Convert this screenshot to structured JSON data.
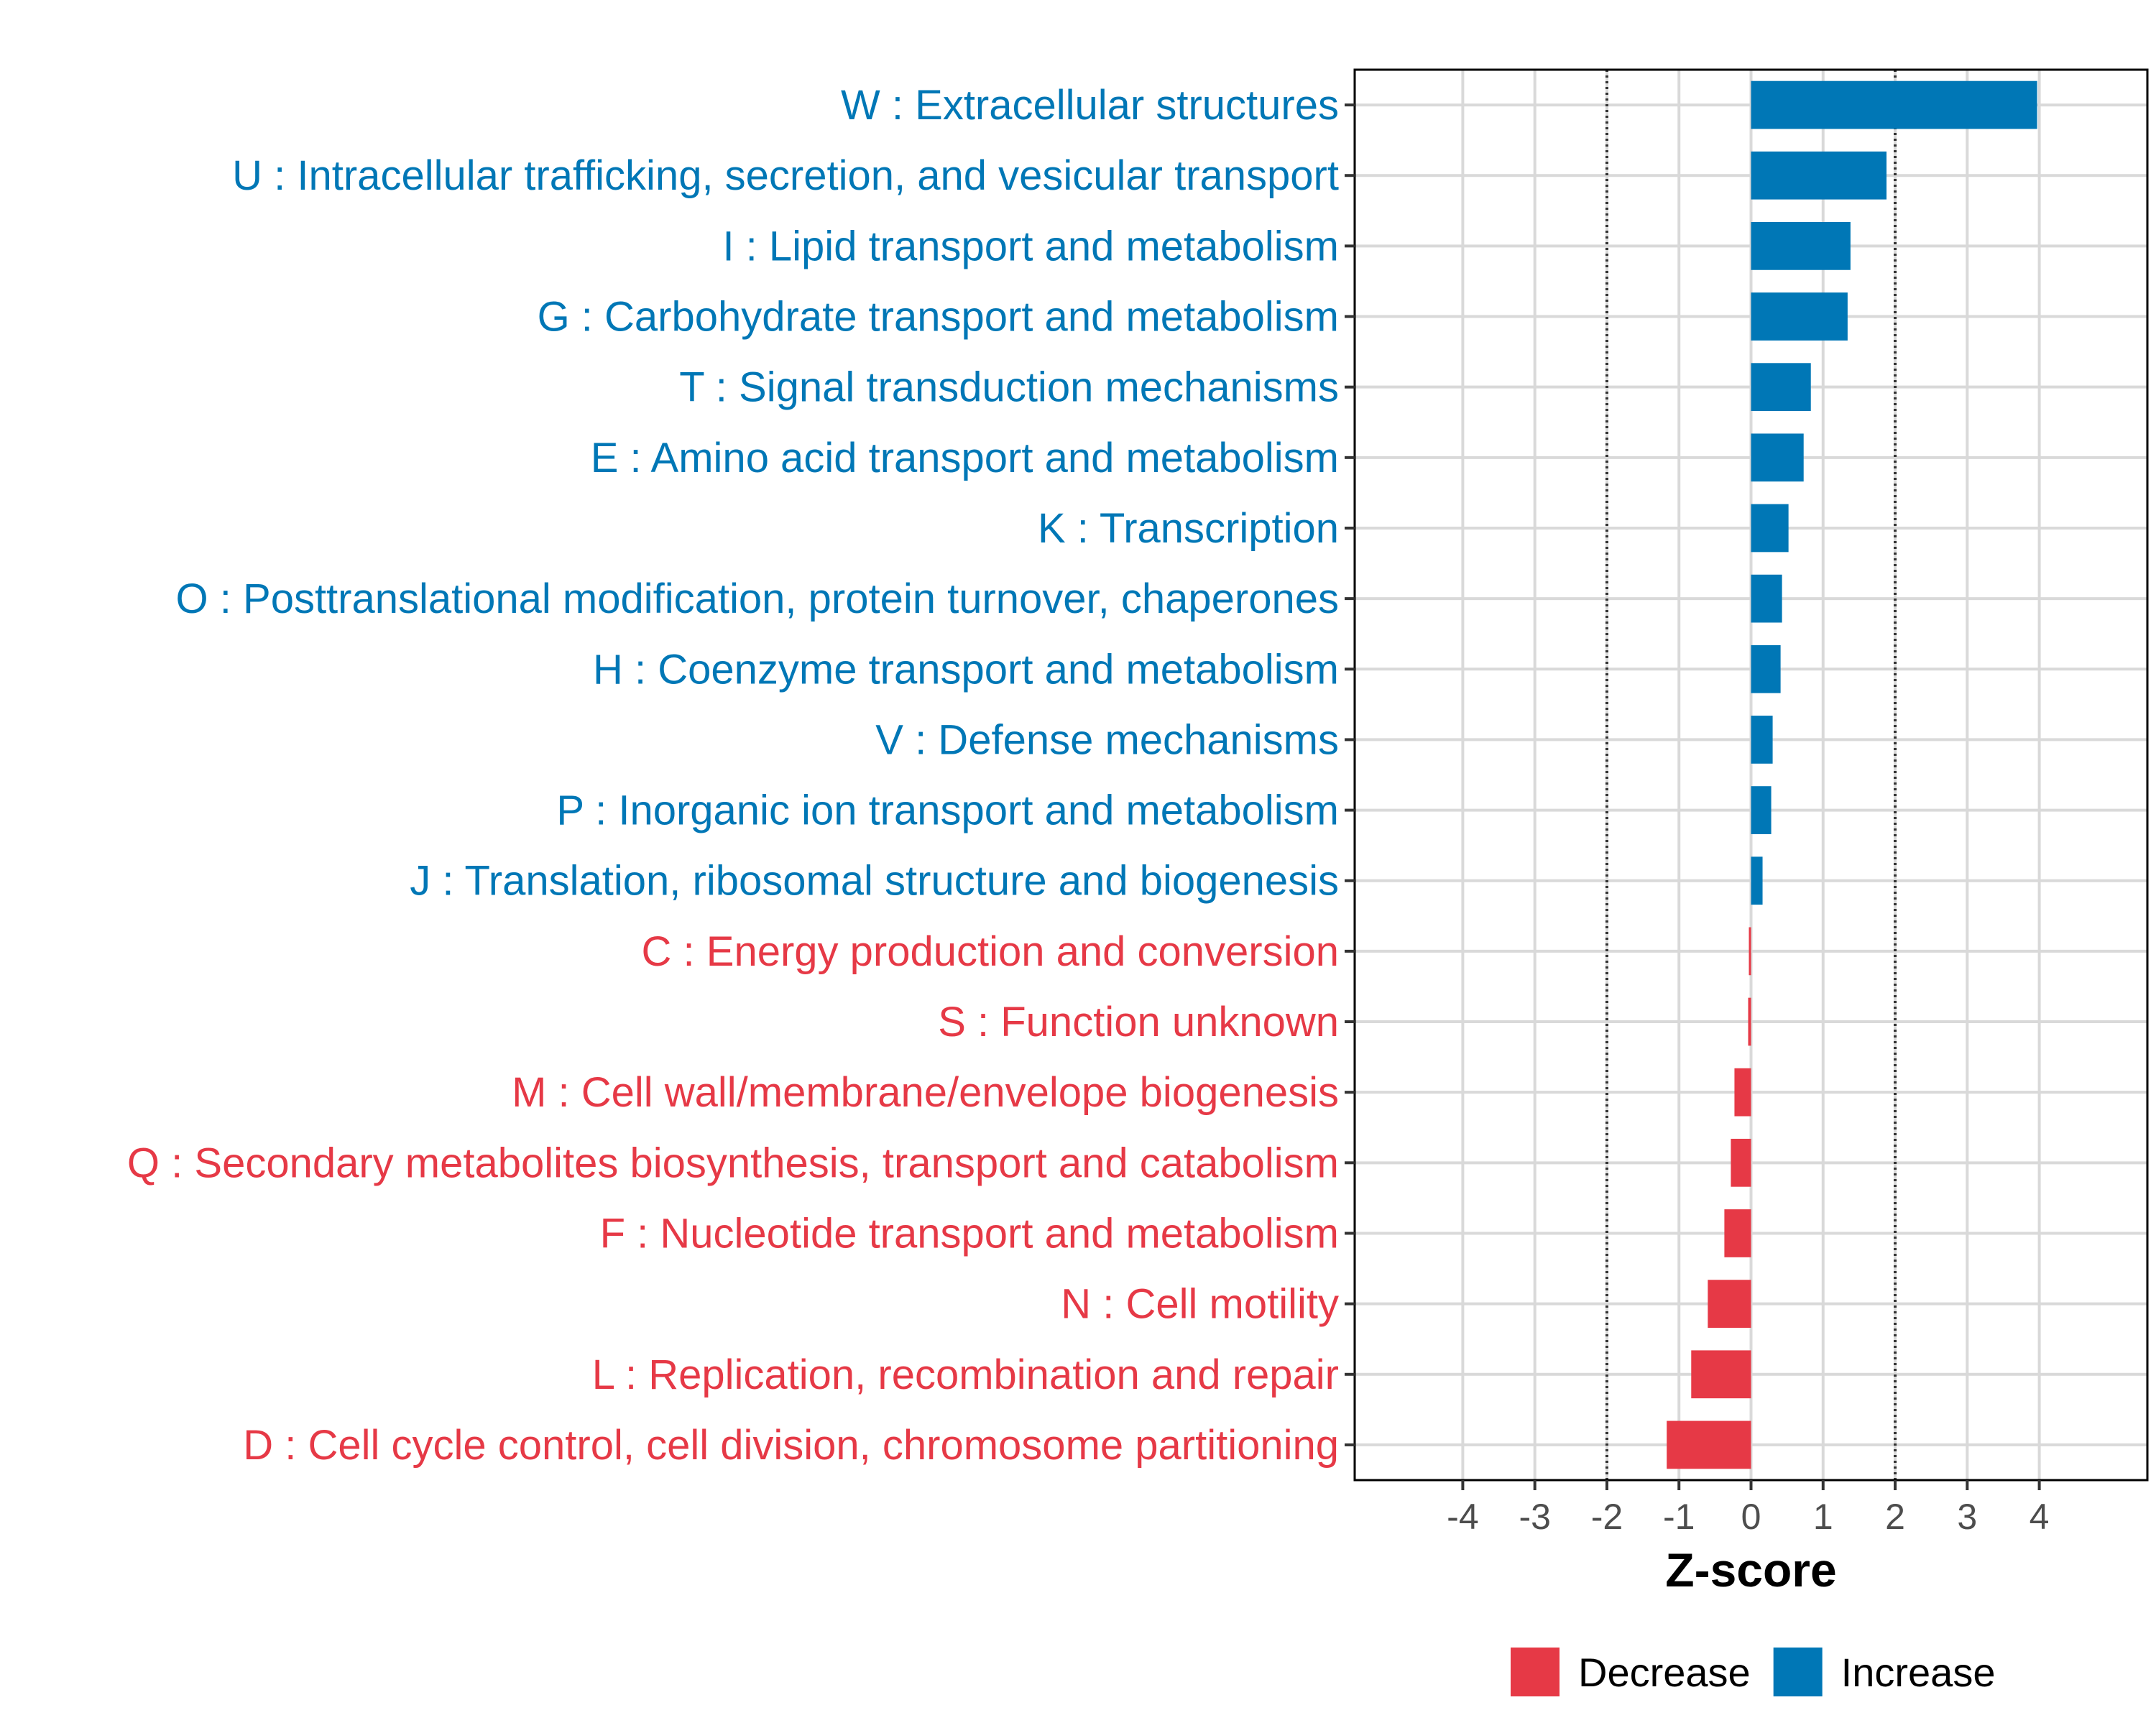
{
  "chart_data": {
    "type": "bar",
    "orientation": "horizontal",
    "xlabel": "Z-score",
    "ylabel": "",
    "xlim": [
      -5.5,
      5.5
    ],
    "x_ticks": [
      -4,
      -3,
      -2,
      -1,
      0,
      1,
      2,
      3,
      4
    ],
    "x_tick_labels": [
      "-4",
      "-3",
      "-2",
      "-1",
      "0",
      "1",
      "2",
      "3",
      "4"
    ],
    "reference_lines": [
      -2,
      2
    ],
    "grid": true,
    "categories": [
      "W : Extracellular structures",
      "U : Intracellular trafficking, secretion, and vesicular transport",
      "I : Lipid transport and metabolism",
      "G : Carbohydrate transport and metabolism",
      "T : Signal transduction mechanisms",
      "E : Amino acid transport and metabolism",
      "K : Transcription",
      "O : Posttranslational modification, protein turnover, chaperones",
      "H : Coenzyme transport and metabolism",
      "V : Defense mechanisms",
      "P : Inorganic ion transport and metabolism",
      "J : Translation, ribosomal structure and biogenesis",
      "C : Energy production and conversion",
      "S : Function unknown",
      "M : Cell wall/membrane/envelope biogenesis",
      "Q : Secondary metabolites biosynthesis, transport and catabolism",
      "F : Nucleotide transport and metabolism",
      "N : Cell motility",
      "L : Replication, recombination and repair",
      "D : Cell cycle control, cell division, chromosome partitioning"
    ],
    "values": [
      3.97,
      1.88,
      1.38,
      1.34,
      0.83,
      0.73,
      0.52,
      0.43,
      0.41,
      0.3,
      0.28,
      0.16,
      -0.03,
      -0.04,
      -0.23,
      -0.28,
      -0.37,
      -0.6,
      -0.83,
      -1.17
    ],
    "groups": [
      "Increase",
      "Increase",
      "Increase",
      "Increase",
      "Increase",
      "Increase",
      "Increase",
      "Increase",
      "Increase",
      "Increase",
      "Increase",
      "Increase",
      "Decrease",
      "Decrease",
      "Decrease",
      "Decrease",
      "Decrease",
      "Decrease",
      "Decrease",
      "Decrease"
    ],
    "legend": {
      "position": "bottom-right",
      "items": [
        {
          "label": "Decrease",
          "color": "#e63946"
        },
        {
          "label": "Increase",
          "color": "#0077b6"
        }
      ]
    },
    "colors": {
      "Increase": "#0077b6",
      "Decrease": "#e63946"
    }
  }
}
